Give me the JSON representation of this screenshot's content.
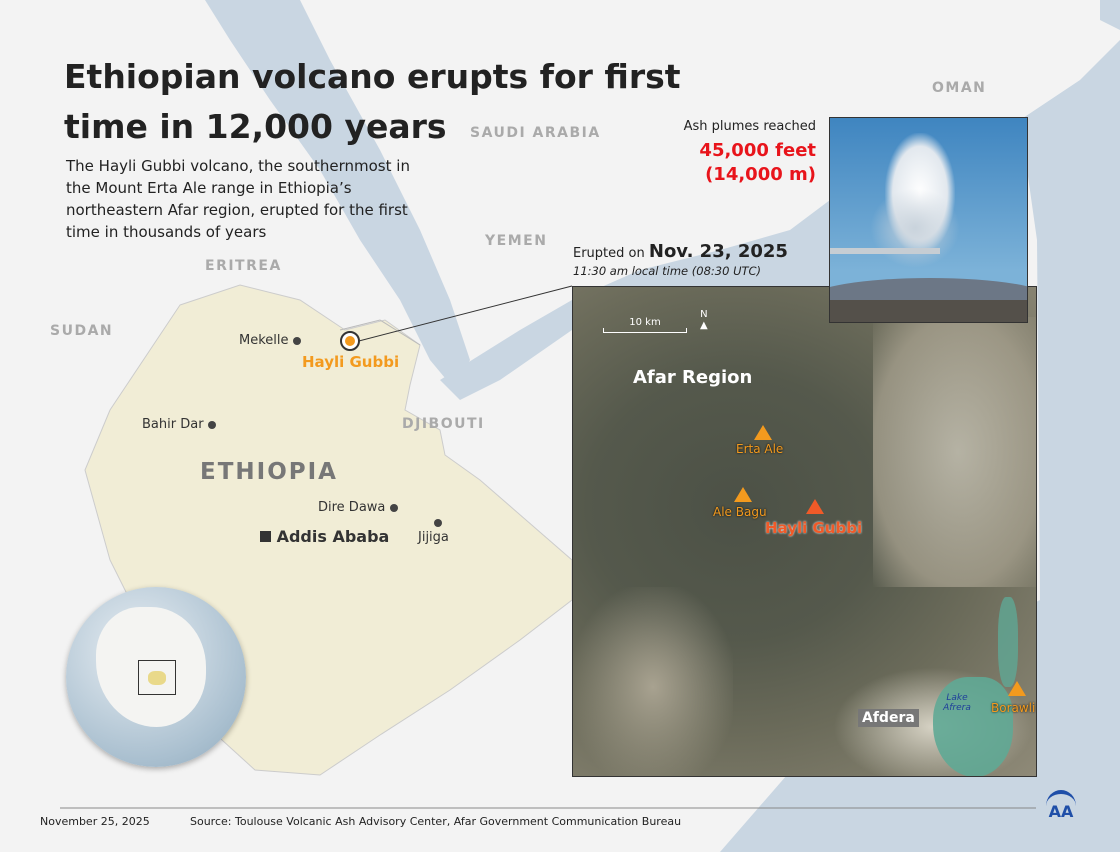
{
  "title": "Ethiopian volcano erupts for first time in 12,000 years",
  "subtitle": "The Hayli Gubbi volcano, the southernmost in the Mount Erta Ale range in Ethiopia’s northeastern Afar region, erupted for the first time in thousands of years",
  "countries": {
    "saudi_arabia": "SAUDI ARABIA",
    "oman": "OMAN",
    "yemen": "YEMEN",
    "eritrea": "ERITREA",
    "sudan": "SUDAN",
    "djibouti": "DJIBOUTI",
    "ethiopia": "ETHIOPIA"
  },
  "cities": {
    "mekelle": "Mekelle",
    "bahir_dar": "Bahir Dar",
    "dire_dawa": "Dire Dawa",
    "jijiga": "Jijiga",
    "addis_ababa": "Addis Ababa"
  },
  "volcano_label": "Hayli Gubbi",
  "ash": {
    "label": "Ash plumes reached",
    "feet": "45,000 feet",
    "meters": "(14,000 m)"
  },
  "eruption": {
    "prefix": "Erupted on",
    "date": "Nov. 23, 2025",
    "time": "11:30 am local time (08:30 UTC)"
  },
  "inset": {
    "scale": "10 km",
    "north": "N",
    "region": "Afar Region",
    "volcanoes": {
      "erta_ale": "Erta Ale",
      "ale_bagu": "Ale Bagu",
      "hayli_gubbi": "Hayli Gubbi",
      "borawli": "Borawli"
    },
    "town": "Afdera",
    "lake": "Lake Afrera"
  },
  "footer": {
    "date": "November 25, 2025",
    "source": "Source: Toulouse Volcanic Ash Advisory Center, Afar Government Communication Bureau",
    "logo": "AA"
  },
  "colors": {
    "accent": "#f39a1e",
    "highlight_red": "#e8141b",
    "volcano_red": "#f05a28",
    "logo_blue": "#1f4fa8",
    "sea": "#c9d6e2",
    "ethiopia": "#f1edd6"
  }
}
